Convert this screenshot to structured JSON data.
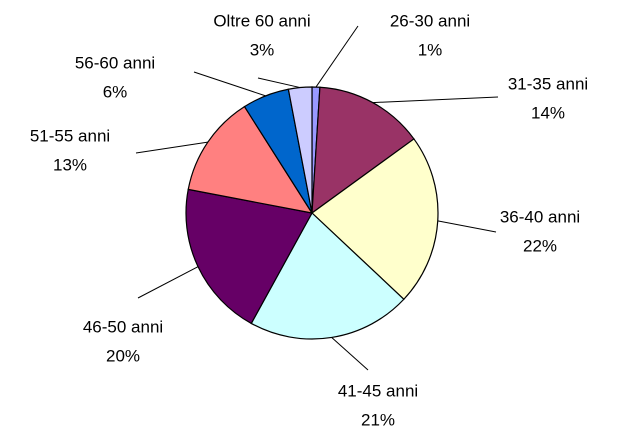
{
  "chart_data": {
    "type": "pie",
    "categories": [
      "26-30 anni",
      "31-35 anni",
      "36-40 anni",
      "41-45 anni",
      "46-50 anni",
      "51-55 anni",
      "56-60 anni",
      "Oltre 60 anni"
    ],
    "values": [
      1,
      14,
      22,
      21,
      20,
      13,
      6,
      3
    ],
    "value_labels": [
      "1%",
      "14%",
      "22%",
      "21%",
      "20%",
      "13%",
      "6%",
      "3%"
    ],
    "colors": [
      "#9999ff",
      "#993366",
      "#ffffcc",
      "#ccffff",
      "#660066",
      "#ff8080",
      "#0066cc",
      "#ccccff"
    ]
  }
}
